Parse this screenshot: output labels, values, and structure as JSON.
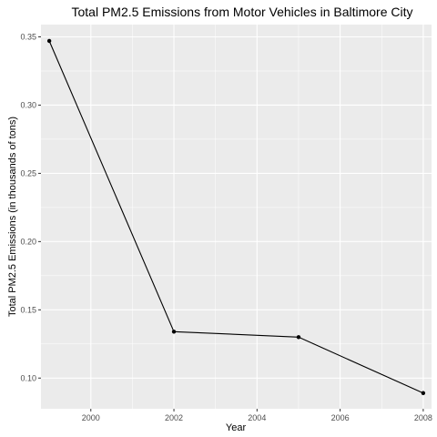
{
  "chart_data": {
    "type": "line",
    "title": "Total PM2.5 Emissions from Motor Vehicles in Baltimore City",
    "xlabel": "Year",
    "ylabel": "Total PM2.5 Emissions (in thousands of tons)",
    "x": [
      1999,
      2002,
      2005,
      2008
    ],
    "y": [
      0.347,
      0.134,
      0.13,
      0.089
    ],
    "xlim": [
      1998.8,
      2008.2
    ],
    "ylim": [
      0.0775,
      0.359
    ],
    "x_ticks": [
      2000,
      2002,
      2004,
      2006,
      2008
    ],
    "x_tick_labels": [
      "2000",
      "2002",
      "2004",
      "2006",
      "2008"
    ],
    "y_ticks": [
      0.1,
      0.15,
      0.2,
      0.25,
      0.3,
      0.35
    ],
    "y_tick_labels": [
      "0.10",
      "0.15",
      "0.20",
      "0.25",
      "0.30",
      "0.35"
    ],
    "grid": true,
    "legend": "none",
    "colors": {
      "panel": "#ebebeb",
      "grid_major": "#ffffff",
      "line": "#000000",
      "tick_text": "#4d4d4d"
    }
  }
}
